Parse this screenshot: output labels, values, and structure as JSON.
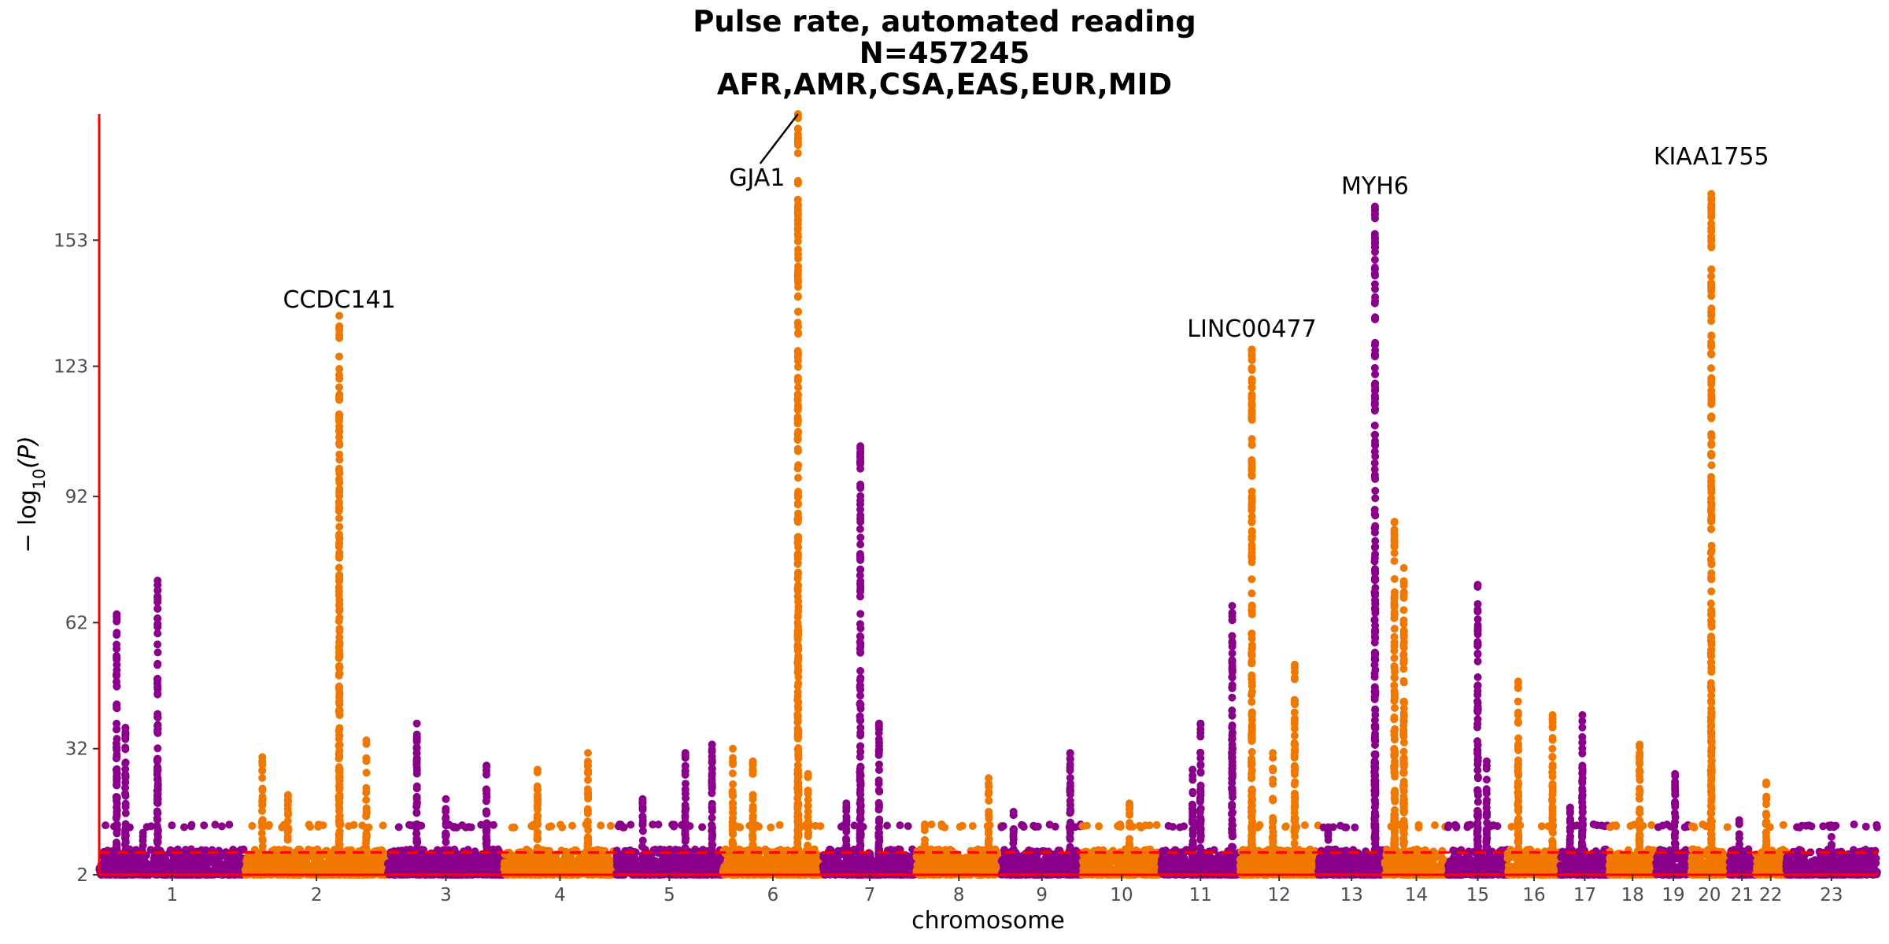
{
  "chart_data": {
    "type": "scatter",
    "subtype": "manhattan",
    "title": "Pulse rate, automated reading",
    "subtitle": "N=457245",
    "subtitle2": "AFR,AMR,CSA,EAS,EUR,MID",
    "xlabel": "chromosome",
    "ylabel": "−log10(P)",
    "ylabel_parts": {
      "prefix": "− log",
      "sub": "10",
      "suffix": "(P)"
    },
    "yticks": [
      2,
      32,
      62,
      92,
      123,
      153
    ],
    "ylim": [
      2,
      183
    ],
    "significance_threshold": 7.3,
    "colors": {
      "odd": "#8b008b",
      "even": "#f07800",
      "axis": "#ff0000",
      "threshold": "#ff0000"
    },
    "chromosomes": [
      {
        "label": "1",
        "size": 249
      },
      {
        "label": "2",
        "size": 243
      },
      {
        "label": "3",
        "size": 198
      },
      {
        "label": "4",
        "size": 191
      },
      {
        "label": "5",
        "size": 182
      },
      {
        "label": "6",
        "size": 171
      },
      {
        "label": "7",
        "size": 159
      },
      {
        "label": "8",
        "size": 145
      },
      {
        "label": "9",
        "size": 138
      },
      {
        "label": "10",
        "size": 134
      },
      {
        "label": "11",
        "size": 135
      },
      {
        "label": "12",
        "size": 133
      },
      {
        "label": "13",
        "size": 114
      },
      {
        "label": "14",
        "size": 107
      },
      {
        "label": "15",
        "size": 102
      },
      {
        "label": "16",
        "size": 90
      },
      {
        "label": "17",
        "size": 83
      },
      {
        "label": "18",
        "size": 80
      },
      {
        "label": "19",
        "size": 59
      },
      {
        "label": "20",
        "size": 64
      },
      {
        "label": "21",
        "size": 47
      },
      {
        "label": "22",
        "size": 51
      },
      {
        "label": "23",
        "size": 156
      }
    ],
    "peaks": [
      {
        "chr": 1,
        "pos": 0.12,
        "max": 64
      },
      {
        "chr": 1,
        "pos": 0.18,
        "max": 37
      },
      {
        "chr": 1,
        "pos": 0.4,
        "max": 72
      },
      {
        "chr": 1,
        "pos": 0.3,
        "max": 12
      },
      {
        "chr": 2,
        "pos": 0.12,
        "max": 30
      },
      {
        "chr": 2,
        "pos": 0.3,
        "max": 21
      },
      {
        "chr": 2,
        "pos": 0.66,
        "max": 135
      },
      {
        "chr": 2,
        "pos": 0.85,
        "max": 34
      },
      {
        "chr": 3,
        "pos": 0.25,
        "max": 38
      },
      {
        "chr": 3,
        "pos": 0.5,
        "max": 20
      },
      {
        "chr": 3,
        "pos": 0.85,
        "max": 28
      },
      {
        "chr": 4,
        "pos": 0.3,
        "max": 27
      },
      {
        "chr": 4,
        "pos": 0.75,
        "max": 31
      },
      {
        "chr": 5,
        "pos": 0.25,
        "max": 20
      },
      {
        "chr": 5,
        "pos": 0.65,
        "max": 31
      },
      {
        "chr": 5,
        "pos": 0.9,
        "max": 33
      },
      {
        "chr": 6,
        "pos": 0.1,
        "max": 32
      },
      {
        "chr": 6,
        "pos": 0.3,
        "max": 29
      },
      {
        "chr": 6,
        "pos": 0.75,
        "max": 183
      },
      {
        "chr": 6,
        "pos": 0.85,
        "max": 26
      },
      {
        "chr": 7,
        "pos": 0.25,
        "max": 19
      },
      {
        "chr": 7,
        "pos": 0.4,
        "max": 104
      },
      {
        "chr": 7,
        "pos": 0.6,
        "max": 38
      },
      {
        "chr": 8,
        "pos": 0.1,
        "max": 14
      },
      {
        "chr": 8,
        "pos": 0.85,
        "max": 25
      },
      {
        "chr": 9,
        "pos": 0.15,
        "max": 17
      },
      {
        "chr": 9,
        "pos": 0.85,
        "max": 31
      },
      {
        "chr": 10,
        "pos": 0.6,
        "max": 19
      },
      {
        "chr": 11,
        "pos": 0.4,
        "max": 27
      },
      {
        "chr": 11,
        "pos": 0.5,
        "max": 38
      },
      {
        "chr": 11,
        "pos": 0.9,
        "max": 66
      },
      {
        "chr": 12,
        "pos": 0.15,
        "max": 127
      },
      {
        "chr": 12,
        "pos": 0.42,
        "max": 31
      },
      {
        "chr": 12,
        "pos": 0.7,
        "max": 52
      },
      {
        "chr": 13,
        "pos": 0.15,
        "max": 12
      },
      {
        "chr": 13,
        "pos": 0.85,
        "max": 161
      },
      {
        "chr": 14,
        "pos": 0.15,
        "max": 86
      },
      {
        "chr": 14,
        "pos": 0.3,
        "max": 75
      },
      {
        "chr": 15,
        "pos": 0.5,
        "max": 71
      },
      {
        "chr": 15,
        "pos": 0.65,
        "max": 29
      },
      {
        "chr": 16,
        "pos": 0.2,
        "max": 48
      },
      {
        "chr": 16,
        "pos": 0.85,
        "max": 40
      },
      {
        "chr": 17,
        "pos": 0.45,
        "max": 40
      },
      {
        "chr": 17,
        "pos": 0.2,
        "max": 18
      },
      {
        "chr": 18,
        "pos": 0.65,
        "max": 33
      },
      {
        "chr": 19,
        "pos": 0.55,
        "max": 26
      },
      {
        "chr": 20,
        "pos": 0.55,
        "max": 164
      },
      {
        "chr": 21,
        "pos": 0.4,
        "max": 15
      },
      {
        "chr": 22,
        "pos": 0.35,
        "max": 24
      },
      {
        "chr": 23,
        "pos": 0.5,
        "max": 11
      }
    ],
    "annotations": [
      {
        "gene": "CCDC141",
        "chr": 2,
        "pos": 0.66,
        "y": 137
      },
      {
        "gene": "GJA1",
        "chr": 6,
        "pos": 0.75,
        "y": 166,
        "leader": true
      },
      {
        "gene": "LINC00477",
        "chr": 12,
        "pos": 0.15,
        "y": 130
      },
      {
        "gene": "MYH6",
        "chr": 13,
        "pos": 0.85,
        "y": 164
      },
      {
        "gene": "KIAA1755",
        "chr": 20,
        "pos": 0.55,
        "y": 171
      }
    ]
  }
}
